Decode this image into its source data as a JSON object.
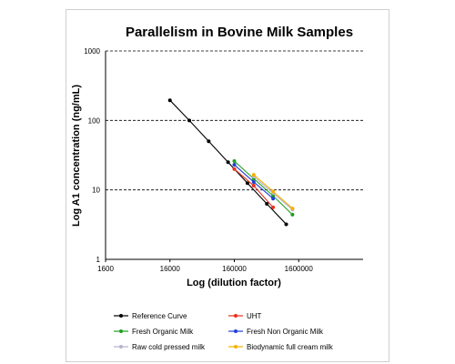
{
  "chart_data": {
    "type": "line",
    "title": "Parallelism in Bovine Milk Samples",
    "xlabel": "Log (dilution factor)",
    "ylabel": "Log A1 concentration (ng/mL)",
    "x_scale": "log",
    "y_scale": "log",
    "xlim": [
      1600,
      16000000
    ],
    "ylim": [
      1,
      1000
    ],
    "x_ticks": [
      1600,
      16000,
      160000,
      1600000
    ],
    "x_tick_labels": [
      "1600",
      "16000",
      "160000",
      "1600000"
    ],
    "y_ticks": [
      1,
      10,
      100,
      1000
    ],
    "y_tick_labels": [
      "1",
      "10",
      "100",
      "1000"
    ],
    "grid": "horizontal dashed",
    "legend_position": "bottom",
    "series": [
      {
        "name": "Reference Curve",
        "color": "#000000",
        "x": [
          16000,
          32000,
          64000,
          128000,
          256000,
          512000,
          1024000
        ],
        "y": [
          195,
          100,
          50,
          25,
          12.5,
          6.3,
          3.2
        ]
      },
      {
        "name": "UHT",
        "color": "#e8301c",
        "x": [
          160000,
          320000,
          640000
        ],
        "y": [
          20,
          11.5,
          5.6
        ]
      },
      {
        "name": "Fresh Organic Milk",
        "color": "#1ea01e",
        "x": [
          160000,
          320000,
          640000,
          1280000
        ],
        "y": [
          26,
          14.5,
          8.2,
          4.4
        ]
      },
      {
        "name": "Fresh Non Organic Milk",
        "color": "#1f3fd6",
        "x": [
          160000,
          320000,
          640000
        ],
        "y": [
          23,
          13,
          7.5
        ]
      },
      {
        "name": "Raw cold pressed milk",
        "color": "#b4b4cf",
        "x": [
          320000,
          640000,
          1280000
        ],
        "y": [
          15.5,
          9,
          5.2
        ]
      },
      {
        "name": "Biodynamic full cream milk",
        "color": "#f5b000",
        "x": [
          320000,
          640000,
          1280000
        ],
        "y": [
          16.5,
          9.5,
          5.4
        ]
      }
    ]
  }
}
